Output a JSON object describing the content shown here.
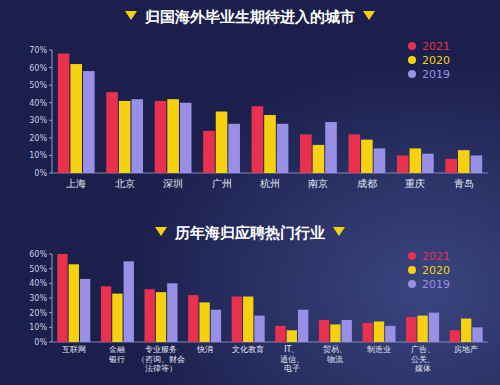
{
  "chart_data": [
    {
      "type": "bar",
      "title": "归国海外毕业生期待进入的城市",
      "categories": [
        "上海",
        "北京",
        "深圳",
        "广州",
        "杭州",
        "南京",
        "成都",
        "重庆",
        "青岛"
      ],
      "series": [
        {
          "name": "2021",
          "color": "#e8304f",
          "values": [
            68,
            46,
            41,
            24,
            38,
            22,
            22,
            10,
            8
          ]
        },
        {
          "name": "2020",
          "color": "#f5d10f",
          "values": [
            62,
            41,
            42,
            35,
            33,
            16,
            19,
            14,
            13
          ]
        },
        {
          "name": "2019",
          "color": "#9a8fe6",
          "values": [
            58,
            42,
            40,
            28,
            28,
            29,
            14,
            11,
            10
          ]
        }
      ],
      "ylim": [
        0,
        70
      ],
      "yticks": [
        {
          "value": 0,
          "label": "0%"
        },
        {
          "value": 10,
          "label": "10%"
        },
        {
          "value": 20,
          "label": "20%"
        },
        {
          "value": 30,
          "label": "30%"
        },
        {
          "value": 40,
          "label": "40%"
        },
        {
          "value": 50,
          "label": "50%"
        },
        {
          "value": 60,
          "label": "60%"
        },
        {
          "value": 70,
          "label": "70%"
        }
      ],
      "grid": false,
      "legend": "top-right"
    },
    {
      "type": "bar",
      "title": "历年海归应聘热门行业",
      "categories": [
        "互联网",
        "金融\n银行",
        "专业服务\n（咨询、财会\n法律等）",
        "快消",
        "文化教育",
        "IT、\n通信、\n电子",
        "贸易、\n物流",
        "制造业",
        "广告、\n公关、\n媒体",
        "房地产"
      ],
      "series": [
        {
          "name": "2021",
          "color": "#e8304f",
          "values": [
            60,
            38,
            36,
            32,
            31,
            11,
            15,
            13,
            17,
            8
          ]
        },
        {
          "name": "2020",
          "color": "#f5d10f",
          "values": [
            53,
            33,
            34,
            27,
            31,
            8,
            12,
            14,
            18,
            16
          ]
        },
        {
          "name": "2019",
          "color": "#9a8fe6",
          "values": [
            43,
            55,
            40,
            22,
            18,
            22,
            15,
            11,
            20,
            10
          ]
        }
      ],
      "ylim": [
        0,
        60
      ],
      "yticks": [
        {
          "value": 0,
          "label": "0%"
        },
        {
          "value": 10,
          "label": "10%"
        },
        {
          "value": 20,
          "label": "20%"
        },
        {
          "value": 30,
          "label": "30%"
        },
        {
          "value": 40,
          "label": "40%"
        },
        {
          "value": 50,
          "label": "50%"
        },
        {
          "value": 60,
          "label": "60%"
        }
      ],
      "grid": false,
      "legend": "top-right"
    }
  ]
}
